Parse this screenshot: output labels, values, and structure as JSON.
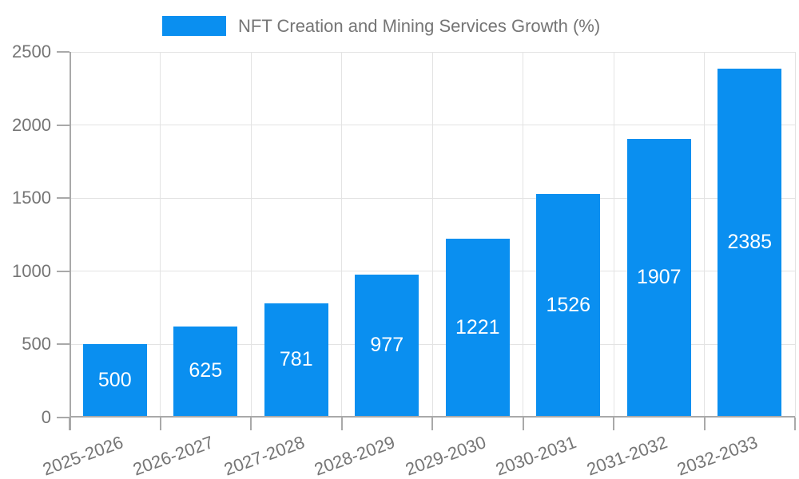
{
  "legend": {
    "label": "NFT Creation and Mining Services Growth (%)"
  },
  "colors": {
    "bar": "#0a8ff0",
    "grid": "#e3e3e3",
    "axis": "#a9a9a9",
    "tick_text": "#757575",
    "value_label": "#ffffff",
    "background": "#ffffff"
  },
  "chart_data": {
    "type": "bar",
    "title": "NFT Creation and Mining Services Growth (%)",
    "series_name": "NFT Creation and Mining Services Growth (%)",
    "categories": [
      "2025-2026",
      "2026-2027",
      "2027-2028",
      "2028-2029",
      "2029-2030",
      "2030-2031",
      "2031-2032",
      "2032-2033"
    ],
    "values": [
      500,
      625,
      781,
      977,
      1221,
      1526,
      1907,
      2385
    ],
    "xlabel": "",
    "ylabel": "",
    "ylim": [
      0,
      2500
    ],
    "yticks": [
      0,
      500,
      1000,
      1500,
      2000,
      2500
    ],
    "grid": true,
    "legend_position": "top-center",
    "value_label_position": "inside-center",
    "x_label_rotation_deg": -20
  }
}
